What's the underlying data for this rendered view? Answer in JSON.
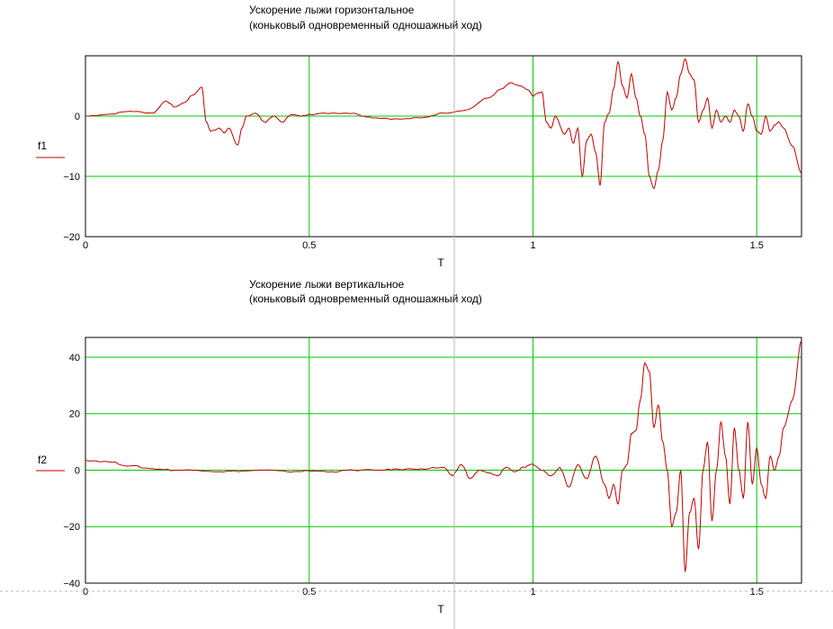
{
  "chart_data": [
    {
      "type": "line",
      "title": "Ускорение лыжи горизонтальное",
      "subtitle": "(коньковый одновременный одношажный ход)",
      "xlabel": "T",
      "ylabel": "f1",
      "xlim": [
        0,
        1.6
      ],
      "ylim": [
        -20,
        10
      ],
      "xticks": [
        "0",
        "0.5",
        "1",
        "1.5"
      ],
      "xtick_values": [
        0,
        0.5,
        1,
        1.5
      ],
      "yticks": [
        "0",
        "−10",
        "−20"
      ],
      "ytick_values": [
        0,
        -10,
        -20
      ],
      "grid": true,
      "grid_color": "#00c800",
      "line_color": "#c00000",
      "series": [
        {
          "x": [
            0,
            0.05,
            0.1,
            0.15,
            0.18,
            0.2,
            0.22,
            0.24,
            0.26,
            0.27,
            0.28,
            0.3,
            0.31,
            0.32,
            0.34,
            0.35,
            0.36,
            0.38,
            0.4,
            0.42,
            0.44,
            0.46,
            0.48,
            0.5,
            0.55,
            0.6,
            0.62,
            0.65,
            0.7,
            0.75,
            0.8,
            0.85,
            0.9,
            0.93,
            0.95,
            0.97,
            0.99,
            1.0,
            1.01,
            1.02,
            1.03,
            1.04,
            1.05,
            1.07,
            1.08,
            1.09,
            1.1,
            1.11,
            1.12,
            1.13,
            1.14,
            1.15,
            1.16,
            1.17,
            1.18,
            1.19,
            1.2,
            1.21,
            1.22,
            1.23,
            1.24,
            1.25,
            1.26,
            1.27,
            1.28,
            1.29,
            1.3,
            1.31,
            1.32,
            1.33,
            1.34,
            1.35,
            1.36,
            1.37,
            1.38,
            1.39,
            1.4,
            1.41,
            1.42,
            1.43,
            1.44,
            1.45,
            1.46,
            1.47,
            1.48,
            1.49,
            1.5,
            1.51,
            1.52,
            1.53,
            1.54,
            1.55,
            1.56,
            1.58,
            1.6
          ],
          "y": [
            0,
            0.3,
            0.8,
            0.5,
            2.5,
            1.5,
            2.2,
            3.5,
            4.8,
            -1,
            -2.5,
            -2,
            -2.8,
            -2,
            -4.8,
            -2,
            0,
            0.5,
            -1,
            0,
            -1,
            0.3,
            0,
            0.3,
            0.5,
            0.5,
            0,
            -0.3,
            -0.5,
            -0.3,
            0.5,
            1,
            3,
            4.5,
            5.5,
            5,
            4.3,
            3.3,
            3.8,
            4,
            -1,
            -2,
            0,
            -3,
            -2,
            -4.5,
            -2,
            -10,
            -4,
            -3,
            -6,
            -11.5,
            -1,
            0.5,
            4.5,
            9,
            5,
            3,
            7,
            3,
            0,
            -3,
            -10,
            -12,
            -9,
            -4,
            4,
            1,
            3,
            7,
            9.5,
            7,
            6,
            -1,
            1,
            3,
            -2,
            1,
            -1,
            0,
            -1,
            1,
            0,
            -2.5,
            2,
            0,
            -2.5,
            -3,
            0,
            -2.5,
            -1.5,
            -1,
            -2,
            -5,
            -9.5
          ]
        }
      ]
    },
    {
      "type": "line",
      "title": "Ускорение лыжи вертикальное",
      "subtitle": "(коньковый одновременный одношажный ход)",
      "xlabel": "T",
      "ylabel": "f2",
      "xlim": [
        0,
        1.6
      ],
      "ylim": [
        -40,
        47
      ],
      "xticks": [
        "0",
        "0.5",
        "1",
        "1.5"
      ],
      "xtick_values": [
        0,
        0.5,
        1,
        1.5
      ],
      "yticks": [
        "40",
        "20",
        "0",
        "−20",
        "−40"
      ],
      "ytick_values": [
        40,
        20,
        0,
        -20,
        -40
      ],
      "grid": true,
      "grid_color": "#00c800",
      "line_color": "#c00000",
      "series": [
        {
          "x": [
            0,
            0.05,
            0.1,
            0.15,
            0.2,
            0.25,
            0.3,
            0.35,
            0.4,
            0.45,
            0.5,
            0.55,
            0.6,
            0.65,
            0.7,
            0.75,
            0.8,
            0.82,
            0.84,
            0.86,
            0.88,
            0.9,
            0.92,
            0.94,
            0.96,
            0.98,
            1.0,
            1.02,
            1.04,
            1.06,
            1.08,
            1.1,
            1.12,
            1.14,
            1.16,
            1.17,
            1.18,
            1.19,
            1.2,
            1.21,
            1.22,
            1.23,
            1.24,
            1.25,
            1.26,
            1.27,
            1.28,
            1.29,
            1.3,
            1.31,
            1.32,
            1.33,
            1.34,
            1.35,
            1.36,
            1.37,
            1.38,
            1.39,
            1.4,
            1.41,
            1.42,
            1.43,
            1.44,
            1.45,
            1.46,
            1.47,
            1.48,
            1.49,
            1.5,
            1.51,
            1.52,
            1.53,
            1.54,
            1.55,
            1.56,
            1.58,
            1.6
          ],
          "y": [
            3.5,
            3,
            1.5,
            0.5,
            0,
            0,
            -0.5,
            -0.3,
            0,
            -0.5,
            -0.3,
            -0.5,
            0,
            0,
            0.3,
            0.5,
            1,
            -2,
            2,
            -3,
            0,
            -1,
            -2,
            1,
            -0.5,
            1,
            2,
            0,
            -2,
            1,
            -6,
            2,
            -3,
            5,
            -5,
            -10,
            -5,
            -12,
            0,
            2,
            13,
            14,
            25,
            38,
            35,
            15,
            23,
            10,
            0,
            -20,
            -15,
            0,
            -36,
            -15,
            -10,
            -28,
            0,
            10,
            -18,
            0,
            17,
            5,
            -12,
            15,
            0,
            -10,
            17,
            -5,
            8,
            -5,
            -10,
            5,
            0,
            5,
            15,
            25,
            46
          ]
        }
      ]
    }
  ]
}
